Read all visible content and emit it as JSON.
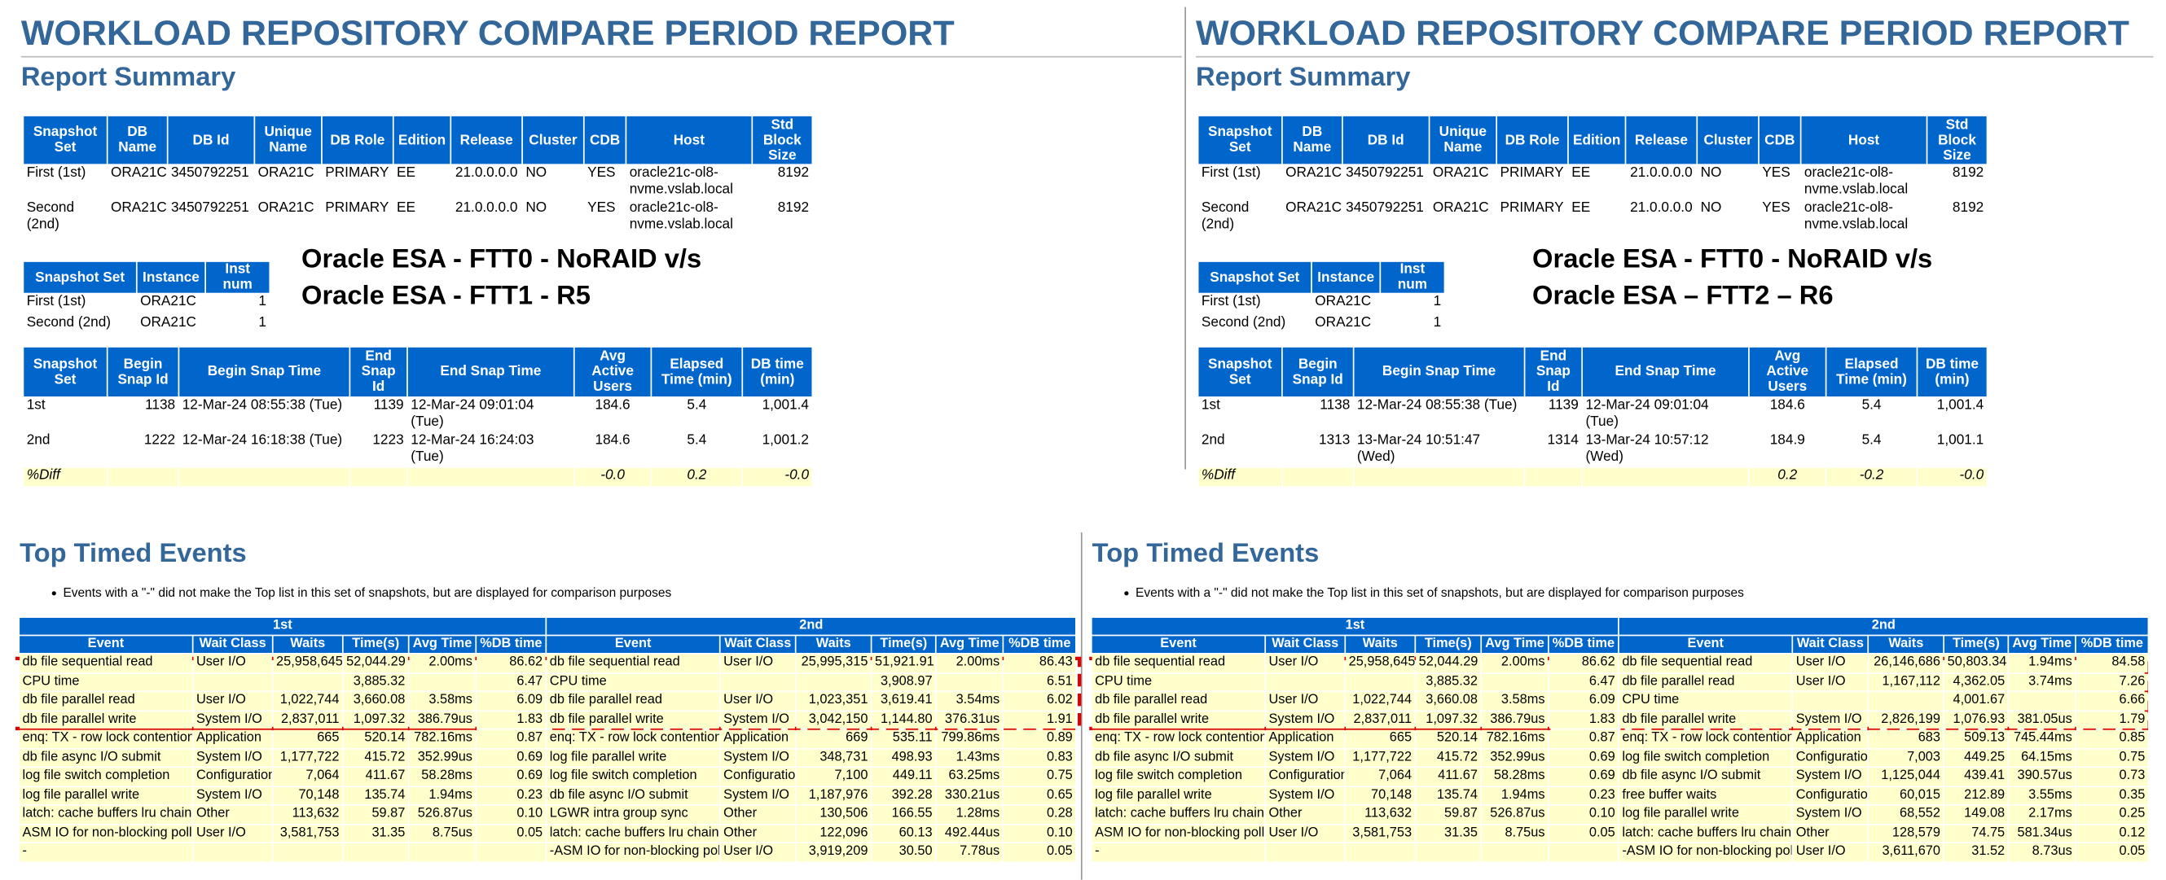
{
  "report_panels": [
    {
      "title": "WORKLOAD REPOSITORY COMPARE PERIOD REPORT",
      "subtitle": "Report Summary",
      "db_table": {
        "headers": [
          "Snapshot Set",
          "DB Name",
          "DB Id",
          "Unique Name",
          "DB Role",
          "Edition",
          "Release",
          "Cluster",
          "CDB",
          "Host",
          "Std Block Size"
        ],
        "rows": [
          [
            "First (1st)",
            "ORA21C",
            "3450792251",
            "ORA21C",
            "PRIMARY",
            "EE",
            "21.0.0.0.0",
            "NO",
            "YES",
            "oracle21c-ol8-nvme.vslab.local",
            "8192"
          ],
          [
            "Second (2nd)",
            "ORA21C",
            "3450792251",
            "ORA21C",
            "PRIMARY",
            "EE",
            "21.0.0.0.0",
            "NO",
            "YES",
            "oracle21c-ol8-nvme.vslab.local",
            "8192"
          ]
        ]
      },
      "instance_table": {
        "headers": [
          "Snapshot Set",
          "Instance",
          "Inst num"
        ],
        "rows": [
          [
            "First (1st)",
            "ORA21C",
            "1"
          ],
          [
            "Second (2nd)",
            "ORA21C",
            "1"
          ]
        ]
      },
      "annotation": [
        "Oracle ESA - FTT0 - NoRAID v/s",
        "Oracle ESA - FTT1 - R5"
      ],
      "snapshot_table": {
        "headers": [
          "Snapshot Set",
          "Begin Snap Id",
          "Begin Snap Time",
          "End Snap Id",
          "End Snap Time",
          "Avg Active Users",
          "Elapsed Time (min)",
          "DB time (min)"
        ],
        "rows": [
          [
            "1st",
            "1138",
            "12-Mar-24 08:55:38 (Tue)",
            "1139",
            "12-Mar-24 09:01:04 (Tue)",
            "184.6",
            "5.4",
            "1,001.4"
          ],
          [
            "2nd",
            "1222",
            "12-Mar-24 16:18:38 (Tue)",
            "1223",
            "12-Mar-24 16:24:03 (Tue)",
            "184.6",
            "5.4",
            "1,001.2"
          ],
          [
            "%Diff",
            null,
            null,
            null,
            null,
            "-0.0",
            "0.2",
            "-0.0"
          ]
        ]
      }
    },
    {
      "title": "WORKLOAD REPOSITORY COMPARE PERIOD REPORT",
      "subtitle": "Report Summary",
      "db_table": {
        "headers": [
          "Snapshot Set",
          "DB Name",
          "DB Id",
          "Unique Name",
          "DB Role",
          "Edition",
          "Release",
          "Cluster",
          "CDB",
          "Host",
          "Std Block Size"
        ],
        "rows": [
          [
            "First (1st)",
            "ORA21C",
            "3450792251",
            "ORA21C",
            "PRIMARY",
            "EE",
            "21.0.0.0.0",
            "NO",
            "YES",
            "oracle21c-ol8-nvme.vslab.local",
            "8192"
          ],
          [
            "Second (2nd)",
            "ORA21C",
            "3450792251",
            "ORA21C",
            "PRIMARY",
            "EE",
            "21.0.0.0.0",
            "NO",
            "YES",
            "oracle21c-ol8-nvme.vslab.local",
            "8192"
          ]
        ]
      },
      "instance_table": {
        "headers": [
          "Snapshot Set",
          "Instance",
          "Inst num"
        ],
        "rows": [
          [
            "First (1st)",
            "ORA21C",
            "1"
          ],
          [
            "Second (2nd)",
            "ORA21C",
            "1"
          ]
        ]
      },
      "annotation": [
        "Oracle ESA - FTT0 - NoRAID v/s",
        "Oracle ESA – FTT2 – R6"
      ],
      "snapshot_table": {
        "headers": [
          "Snapshot Set",
          "Begin Snap Id",
          "Begin Snap Time",
          "End Snap Id",
          "End Snap Time",
          "Avg Active Users",
          "Elapsed Time (min)",
          "DB time (min)"
        ],
        "rows": [
          [
            "1st",
            "1138",
            "12-Mar-24 08:55:38 (Tue)",
            "1139",
            "12-Mar-24 09:01:04 (Tue)",
            "184.6",
            "5.4",
            "1,001.4"
          ],
          [
            "2nd",
            "1313",
            "13-Mar-24 10:51:47 (Wed)",
            "1314",
            "13-Mar-24 10:57:12 (Wed)",
            "184.9",
            "5.4",
            "1,001.1"
          ],
          [
            "%Diff",
            null,
            null,
            null,
            null,
            "0.2",
            "-0.2",
            "-0.0"
          ]
        ]
      }
    }
  ],
  "event_panels": [
    {
      "title": "Top Timed Events",
      "note": "Events with a \"-\" did not make the Top list in this set of snapshots, but are displayed for comparison purposes",
      "groups": [
        "1st",
        "2nd"
      ],
      "headers": [
        "Event",
        "Wait Class",
        "Waits",
        "Time(s)",
        "Avg Time",
        "%DB time",
        "Event",
        "Wait Class",
        "Waits",
        "Time(s)",
        "Avg Time",
        "%DB time"
      ],
      "rows": [
        [
          "db file sequential read",
          "User I/O",
          "25,958,645",
          "52,044.29",
          "2.00ms",
          "86.62",
          "db file sequential read",
          "User I/O",
          "25,995,315",
          "51,921.91",
          "2.00ms",
          "86.43"
        ],
        [
          "CPU time",
          null,
          null,
          "3,885.32",
          null,
          "6.47",
          "CPU time",
          null,
          null,
          "3,908.97",
          null,
          "6.51"
        ],
        [
          "db file parallel read",
          "User I/O",
          "1,022,744",
          "3,660.08",
          "3.58ms",
          "6.09",
          "db file parallel read",
          "User I/O",
          "1,023,351",
          "3,619.41",
          "3.54ms",
          "6.02"
        ],
        [
          "db file parallel write",
          "System I/O",
          "2,837,011",
          "1,097.32",
          "386.79us",
          "1.83",
          "db file parallel write",
          "System I/O",
          "3,042,150",
          "1,144.80",
          "376.31us",
          "1.91"
        ],
        [
          "enq: TX - row lock contention",
          "Application",
          "665",
          "520.14",
          "782.16ms",
          "0.87",
          "enq: TX - row lock contention",
          "Application",
          "669",
          "535.11",
          "799.86ms",
          "0.89"
        ],
        [
          "db file async I/O submit",
          "System I/O",
          "1,177,722",
          "415.72",
          "352.99us",
          "0.69",
          "log file parallel write",
          "System I/O",
          "348,731",
          "498.93",
          "1.43ms",
          "0.83"
        ],
        [
          "log file switch completion",
          "Configuration",
          "7,064",
          "411.67",
          "58.28ms",
          "0.69",
          "log file switch completion",
          "Configuration",
          "7,100",
          "449.11",
          "63.25ms",
          "0.75"
        ],
        [
          "log file parallel write",
          "System I/O",
          "70,148",
          "135.74",
          "1.94ms",
          "0.23",
          "db file async I/O submit",
          "System I/O",
          "1,187,976",
          "392.28",
          "330.21us",
          "0.65"
        ],
        [
          "latch: cache buffers lru chain",
          "Other",
          "113,632",
          "59.87",
          "526.87us",
          "0.10",
          "LGWR intra group sync",
          "Other",
          "130,506",
          "166.55",
          "1.28ms",
          "0.28"
        ],
        [
          "ASM IO for non-blocking poll",
          "User I/O",
          "3,581,753",
          "31.35",
          "8.75us",
          "0.05",
          "latch: cache buffers lru chain",
          "Other",
          "122,096",
          "60.13",
          "492.44us",
          "0.10"
        ],
        [
          "-",
          null,
          null,
          null,
          null,
          null,
          "-ASM IO for non-blocking poll",
          "User I/O",
          "3,919,209",
          "30.50",
          "7.78us",
          "0.05"
        ]
      ]
    },
    {
      "title": "Top Timed Events",
      "note": "Events with a \"-\" did not make the Top list in this set of snapshots, but are displayed for comparison purposes",
      "groups": [
        "1st",
        "2nd"
      ],
      "headers": [
        "Event",
        "Wait Class",
        "Waits",
        "Time(s)",
        "Avg Time",
        "%DB time",
        "Event",
        "Wait Class",
        "Waits",
        "Time(s)",
        "Avg Time",
        "%DB time"
      ],
      "rows": [
        [
          "db file sequential read",
          "User I/O",
          "25,958,645",
          "52,044.29",
          "2.00ms",
          "86.62",
          "db file sequential read",
          "User I/O",
          "26,146,686",
          "50,803.34",
          "1.94ms",
          "84.58"
        ],
        [
          "CPU time",
          null,
          null,
          "3,885.32",
          null,
          "6.47",
          "db file parallel read",
          "User I/O",
          "1,167,112",
          "4,362.05",
          "3.74ms",
          "7.26"
        ],
        [
          "db file parallel read",
          "User I/O",
          "1,022,744",
          "3,660.08",
          "3.58ms",
          "6.09",
          "CPU time",
          null,
          null,
          "4,001.67",
          null,
          "6.66"
        ],
        [
          "db file parallel write",
          "System I/O",
          "2,837,011",
          "1,097.32",
          "386.79us",
          "1.83",
          "db file parallel write",
          "System I/O",
          "2,826,199",
          "1,076.93",
          "381.05us",
          "1.79"
        ],
        [
          "enq: TX - row lock contention",
          "Application",
          "665",
          "520.14",
          "782.16ms",
          "0.87",
          "enq: TX - row lock contention",
          "Application",
          "683",
          "509.13",
          "745.44ms",
          "0.85"
        ],
        [
          "db file async I/O submit",
          "System I/O",
          "1,177,722",
          "415.72",
          "352.99us",
          "0.69",
          "log file switch completion",
          "Configuration",
          "7,003",
          "449.25",
          "64.15ms",
          "0.75"
        ],
        [
          "log file switch completion",
          "Configuration",
          "7,064",
          "411.67",
          "58.28ms",
          "0.69",
          "db file async I/O submit",
          "System I/O",
          "1,125,044",
          "439.41",
          "390.57us",
          "0.73"
        ],
        [
          "log file parallel write",
          "System I/O",
          "70,148",
          "135.74",
          "1.94ms",
          "0.23",
          "free buffer waits",
          "Configuration",
          "60,015",
          "212.89",
          "3.55ms",
          "0.35"
        ],
        [
          "latch: cache buffers lru chain",
          "Other",
          "113,632",
          "59.87",
          "526.87us",
          "0.10",
          "log file parallel write",
          "System I/O",
          "68,552",
          "149.08",
          "2.17ms",
          "0.25"
        ],
        [
          "ASM IO for non-blocking poll",
          "User I/O",
          "3,581,753",
          "31.35",
          "8.75us",
          "0.05",
          "latch: cache buffers lru chain",
          "Other",
          "128,579",
          "74.75",
          "581.34us",
          "0.12"
        ],
        [
          "-",
          null,
          null,
          null,
          null,
          null,
          "-ASM IO for non-blocking poll",
          "User I/O",
          "3,611,670",
          "31.52",
          "8.73us",
          "0.05"
        ]
      ]
    }
  ]
}
